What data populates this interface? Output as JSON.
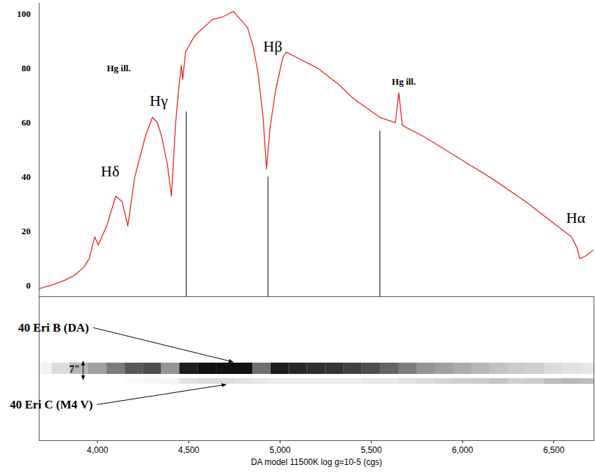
{
  "chart_data": {
    "type": "line",
    "xlabel": "DA model 11500K log g=10-5 (cgs)",
    "color": "#ee2222",
    "grid": false,
    "xlim": [
      3680,
      6720
    ],
    "xticks": [
      4000,
      4500,
      5000,
      5500,
      6000,
      6500
    ],
    "ylim": [
      -4,
      104
    ],
    "yticks": [
      0,
      20,
      40,
      60,
      80,
      100
    ],
    "x": [
      3684,
      3761,
      3819,
      3877,
      3927,
      3954,
      3973,
      3985,
      4004,
      4050,
      4100,
      4135,
      4166,
      4204,
      4262,
      4301,
      4328,
      4351,
      4382,
      4405,
      4428,
      4444,
      4459,
      4467,
      4482,
      4532,
      4629,
      4687,
      4745,
      4783,
      4822,
      4853,
      4880,
      4907,
      4926,
      4945,
      4976,
      5015,
      5034,
      5092,
      5208,
      5323,
      5400,
      5547,
      5632,
      5651,
      5670,
      5786,
      5979,
      6172,
      6346,
      6461,
      6539,
      6597,
      6627,
      6643,
      6674,
      6715
    ],
    "values": [
      -1,
      0.5,
      2,
      4,
      7,
      10,
      15,
      18,
      15,
      22,
      33,
      31,
      22,
      40,
      55,
      62,
      60,
      55,
      45,
      33,
      60,
      72,
      81,
      76,
      86,
      92,
      98,
      99,
      101,
      98,
      95,
      88,
      78,
      62,
      43,
      58,
      72,
      84,
      86,
      84,
      80,
      74,
      69,
      62,
      60,
      71,
      59,
      55,
      47,
      39,
      31,
      25,
      21,
      18,
      14,
      10,
      11,
      13
    ],
    "annotations": [
      {
        "text": "Hδ",
        "x": 4069,
        "y": 42
      },
      {
        "text": "Hγ",
        "x": 4335,
        "y": 68
      },
      {
        "text": "Hβ",
        "x": 4960,
        "y": 88
      },
      {
        "text": "Hα",
        "x": 6620,
        "y": 25
      }
    ],
    "lamp_labels": [
      {
        "text": "Hg ill.",
        "x": 4116,
        "y": 80
      },
      {
        "text": "Hg ill.",
        "x": 5678,
        "y": 75
      }
    ],
    "guide_lines": [
      {
        "x": 4486,
        "y": 64
      },
      {
        "x": 4934,
        "y": 40
      },
      {
        "x": 5547,
        "y": 57
      }
    ],
    "strip": {
      "x": [
        3700,
        3800,
        3900,
        4000,
        4100,
        4200,
        4300,
        4400,
        4500,
        4600,
        4700,
        4800,
        4900,
        5000,
        5100,
        5200,
        5300,
        5400,
        5500,
        5600,
        5700,
        5800,
        5900,
        6000,
        6100,
        6200,
        6300,
        6400,
        6500,
        6600,
        6700
      ],
      "intensity_lim": [
        0,
        100
      ],
      "traces": [
        {
          "name": "40 Eri B (DA)",
          "label_x": 3761,
          "arrow_x": 4745,
          "values": [
            5,
            15,
            30,
            40,
            55,
            70,
            75,
            45,
            95,
            100,
            100,
            100,
            60,
            95,
            90,
            88,
            85,
            80,
            75,
            65,
            55,
            45,
            40,
            35,
            30,
            25,
            22,
            20,
            15,
            12,
            10
          ]
        },
        {
          "name": "40 Eri C (M4 V)",
          "label_x": 3749,
          "arrow_x": 4706,
          "values": [
            0,
            0,
            0,
            0,
            0,
            2,
            3,
            5,
            12,
            15,
            15,
            12,
            10,
            8,
            8,
            8,
            8,
            8,
            10,
            10,
            12,
            15,
            18,
            20,
            22,
            25,
            20,
            22,
            28,
            30,
            28
          ]
        }
      ],
      "separation": {
        "label": "7\"",
        "x": 3923
      }
    }
  }
}
